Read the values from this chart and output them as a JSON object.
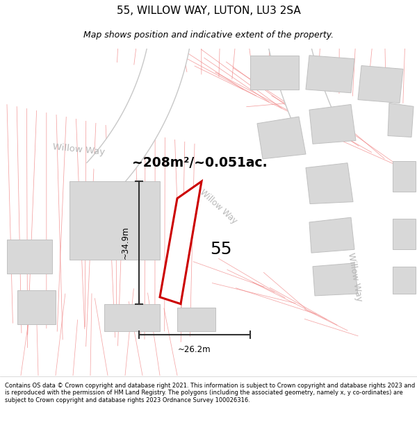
{
  "title": "55, WILLOW WAY, LUTON, LU3 2SA",
  "subtitle": "Map shows position and indicative extent of the property.",
  "footer": "Contains OS data © Crown copyright and database right 2021. This information is subject to Crown copyright and database rights 2023 and is reproduced with the permission of HM Land Registry. The polygons (including the associated geometry, namely x, y co-ordinates) are subject to Crown copyright and database rights 2023 Ordnance Survey 100026316.",
  "area_label": "~208m²/~0.051ac.",
  "house_number": "55",
  "width_label": "~26.2m",
  "height_label": "~34.9m",
  "bg_color": "#ffffff",
  "road_fill": "#ffffff",
  "road_edge": "#c8c8c8",
  "plot_outline_color": "#cc0000",
  "building_color": "#d8d8d8",
  "building_edge": "#c0c0c0",
  "plot_line_color": "#f08080",
  "street_label_color": "#bbbbbb",
  "title_fontsize": 11,
  "subtitle_fontsize": 9,
  "footer_fontsize": 6.5
}
